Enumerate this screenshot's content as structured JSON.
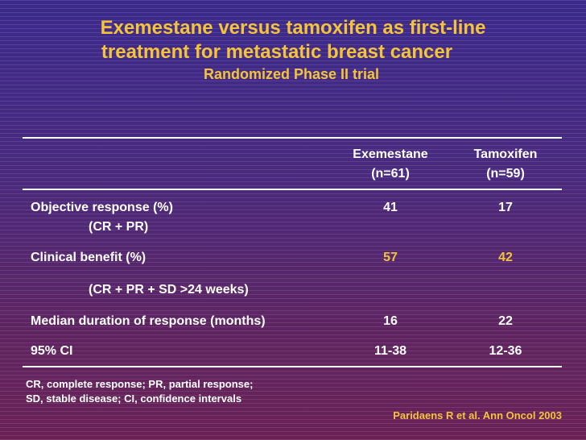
{
  "title": {
    "line1": "Exemestane versus tamoxifen as first-line",
    "line2": "treatment for metastatic breast cancer",
    "subtitle": "Randomized Phase II trial"
  },
  "table": {
    "header": {
      "exemestane_name": "Exemestane",
      "exemestane_n": "(n=61)",
      "tamoxifen_name": "Tamoxifen",
      "tamoxifen_n": "(n=59)"
    },
    "rows": [
      {
        "label": "Objective response (%)",
        "sublabel": "(CR + PR)",
        "exemestane": "41",
        "tamoxifen": "17"
      },
      {
        "label": "Clinical benefit (%)",
        "sublabel": "(CR + PR + SD >24 weeks)",
        "exemestane": "57",
        "tamoxifen": "42"
      },
      {
        "label": "Median duration of response (months)",
        "exemestane": "16",
        "tamoxifen": "22"
      },
      {
        "label": "95% CI",
        "exemestane": "11-38",
        "tamoxifen": "12-36"
      }
    ]
  },
  "footnote": {
    "line1": "CR, complete response; PR, partial response;",
    "line2": "SD, stable disease; CI, confidence intervals"
  },
  "citation": "Paridaens R et al. Ann Oncol 2003",
  "colors": {
    "accent": "#f5c33a",
    "text": "#ffffff"
  }
}
